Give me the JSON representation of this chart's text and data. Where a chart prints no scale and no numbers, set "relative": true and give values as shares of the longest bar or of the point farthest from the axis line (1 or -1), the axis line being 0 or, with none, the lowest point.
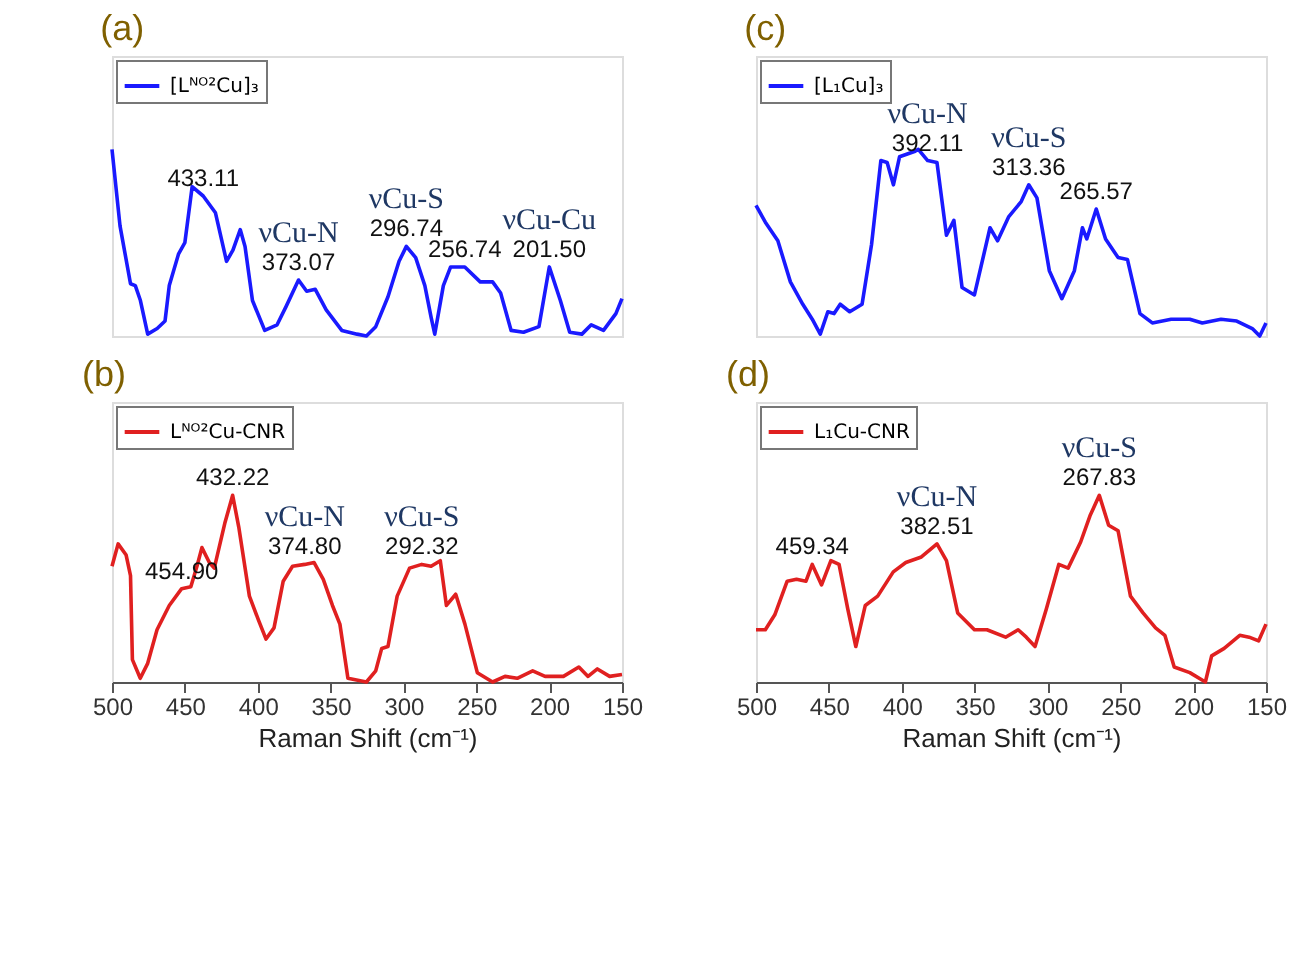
{
  "chart_data": [
    {
      "type": "line",
      "title": "(a)",
      "relative": true,
      "xlim": [
        500,
        150
      ],
      "xticks": [
        500,
        450,
        400,
        350,
        300,
        250,
        200,
        150
      ],
      "tick_labels": false,
      "legend": "top left",
      "grid": false,
      "series": [
        {
          "name": "[Lᴺᴼ²Cu]₃",
          "color": "#1a1aff",
          "x": [
            500,
            494.5,
            487.3,
            484,
            480.5,
            475.5,
            469,
            463.6,
            460.7,
            454.3,
            450,
            445,
            437.4,
            429,
            421.4,
            417,
            412,
            408.7,
            403.6,
            395.2,
            386.7,
            380.4,
            372,
            366.4,
            360.5,
            353,
            342.3,
            331.8,
            325.4,
            319,
            310.6,
            303,
            298,
            291.6,
            285.3,
            281,
            278.5,
            272.6,
            267.6,
            257.9,
            247.3,
            238.8,
            233.3,
            226.1,
            217.6,
            207,
            199.9,
            192.3,
            185.9,
            177.5,
            171.1,
            162.7,
            154.2,
            150
          ],
          "values": [
            1.0,
            0.59,
            0.28,
            0.27,
            0.19,
            0.01,
            0.04,
            0.08,
            0.27,
            0.44,
            0.5,
            0.8,
            0.75,
            0.66,
            0.4,
            0.46,
            0.57,
            0.48,
            0.19,
            0.03,
            0.06,
            0.16,
            0.3,
            0.24,
            0.25,
            0.14,
            0.03,
            0.01,
            0.0,
            0.05,
            0.21,
            0.4,
            0.48,
            0.42,
            0.27,
            0.1,
            0.01,
            0.27,
            0.37,
            0.37,
            0.29,
            0.29,
            0.23,
            0.03,
            0.02,
            0.05,
            0.37,
            0.19,
            0.02,
            0.01,
            0.06,
            0.03,
            0.12,
            0.2
          ]
        }
      ],
      "annotations": [
        {
          "text": "433.11",
          "x": 437.4,
          "y": 0.75
        },
        {
          "text": "373.07",
          "x": 372,
          "y": 0.3
        },
        {
          "text": "νCu-N",
          "x": 372,
          "y": 0.3
        },
        {
          "text": "296.74",
          "x": 298,
          "y": 0.48
        },
        {
          "text": "νCu-S",
          "x": 298,
          "y": 0.48
        },
        {
          "text": "256.74",
          "x": 257.9,
          "y": 0.37
        },
        {
          "text": "201.50",
          "x": 199.9,
          "y": 0.37
        },
        {
          "text": "νCu-Cu",
          "x": 199.9,
          "y": 0.37
        }
      ]
    },
    {
      "type": "line",
      "title": "(c)",
      "relative": true,
      "xlim": [
        500,
        150
      ],
      "xticks": [
        500,
        450,
        400,
        350,
        300,
        250,
        200,
        150
      ],
      "tick_labels": false,
      "legend": "top left",
      "grid": false,
      "series": [
        {
          "name": "[L₁Cu]₃",
          "color": "#1a1aff",
          "x": [
            500,
            493.6,
            485,
            476.4,
            467.9,
            461.4,
            455.9,
            450.7,
            446.4,
            442.2,
            435.7,
            427.2,
            420.7,
            414.3,
            410,
            405.7,
            401.5,
            390.8,
            388.6,
            382.2,
            375.8,
            369.3,
            364.2,
            358.6,
            350.1,
            339.4,
            334.2,
            326.5,
            318,
            312.8,
            307.2,
            298.7,
            290.1,
            281.5,
            276,
            273,
            266.5,
            260.1,
            251.5,
            245.1,
            236.5,
            228,
            215.1,
            202.3,
            193.7,
            180.9,
            170.1,
            159.4,
            154.3,
            150
          ],
          "values": [
            0.7,
            0.61,
            0.51,
            0.29,
            0.17,
            0.09,
            0.01,
            0.13,
            0.12,
            0.17,
            0.13,
            0.17,
            0.49,
            0.94,
            0.93,
            0.81,
            0.96,
            0.99,
            1.0,
            0.94,
            0.93,
            0.54,
            0.62,
            0.26,
            0.22,
            0.58,
            0.51,
            0.64,
            0.72,
            0.81,
            0.74,
            0.35,
            0.2,
            0.35,
            0.58,
            0.52,
            0.68,
            0.52,
            0.42,
            0.41,
            0.12,
            0.07,
            0.09,
            0.09,
            0.07,
            0.09,
            0.08,
            0.04,
            0.0,
            0.07
          ]
        }
      ],
      "annotations": [
        {
          "text": "392.11",
          "x": 382.2,
          "y": 0.94
        },
        {
          "text": "νCu-N",
          "x": 382.2,
          "y": 0.94
        },
        {
          "text": "313.36",
          "x": 312.8,
          "y": 0.81
        },
        {
          "text": "νCu-S",
          "x": 312.8,
          "y": 0.81
        },
        {
          "text": "265.57",
          "x": 266.5,
          "y": 0.68
        }
      ]
    },
    {
      "type": "line",
      "title": "(b)",
      "relative": true,
      "xlabel": "Raman Shift (cm⁻¹)",
      "xlim": [
        500,
        150
      ],
      "xticks": [
        500,
        450,
        400,
        350,
        300,
        250,
        200,
        150
      ],
      "tick_labels": "x",
      "legend": "top left",
      "grid": false,
      "series": [
        {
          "name": "Lᴺᴼ²Cu-CNR",
          "color": "#e02020",
          "x": [
            500,
            495.8,
            490.3,
            487.3,
            486,
            480.6,
            475.5,
            469.1,
            460.7,
            452.2,
            445.9,
            441.7,
            438.3,
            433.2,
            429.8,
            422.6,
            417.2,
            413,
            405.7,
            399.4,
            394.3,
            388.8,
            382.5,
            376.1,
            367.7,
            361.3,
            355,
            348.7,
            343.6,
            338.1,
            325.4,
            319,
            314.9,
            310.6,
            304.3,
            295.8,
            287.4,
            281,
            274.7,
            270.5,
            264.1,
            257.8,
            249.3,
            238.8,
            230.3,
            221.9,
            211.3,
            202.8,
            190.2,
            179.6,
            173.3,
            166.9,
            158.5,
            150
          ],
          "values": [
            0.62,
            0.74,
            0.68,
            0.57,
            0.12,
            0.02,
            0.1,
            0.28,
            0.41,
            0.5,
            0.51,
            0.62,
            0.72,
            0.64,
            0.61,
            0.85,
            1.0,
            0.83,
            0.46,
            0.33,
            0.23,
            0.29,
            0.54,
            0.62,
            0.63,
            0.64,
            0.55,
            0.41,
            0.31,
            0.02,
            0.0,
            0.06,
            0.18,
            0.19,
            0.46,
            0.61,
            0.63,
            0.62,
            0.65,
            0.41,
            0.47,
            0.31,
            0.05,
            0.0,
            0.03,
            0.02,
            0.06,
            0.03,
            0.03,
            0.08,
            0.03,
            0.07,
            0.03,
            0.04
          ]
        }
      ],
      "annotations": [
        {
          "text": "432.22",
          "x": 417.2,
          "y": 1.0
        },
        {
          "text": "454.90",
          "x": 452.2,
          "y": 0.5
        },
        {
          "text": "374.80",
          "x": 367.7,
          "y": 0.63
        },
        {
          "text": "νCu-N",
          "x": 367.7,
          "y": 0.63
        },
        {
          "text": "292.32",
          "x": 287.4,
          "y": 0.63
        },
        {
          "text": "νCu-S",
          "x": 287.4,
          "y": 0.63
        }
      ]
    },
    {
      "type": "line",
      "title": "(d)",
      "relative": true,
      "xlabel": "Raman Shift (cm⁻¹)",
      "xlim": [
        500,
        150
      ],
      "xticks": [
        500,
        450,
        400,
        350,
        300,
        250,
        200,
        150
      ],
      "tick_labels": "x",
      "legend": "top left",
      "grid": false,
      "series": [
        {
          "name": "L₁Cu-CNR",
          "color": "#e02020",
          "x": [
            500,
            493.6,
            487.1,
            478.6,
            472.2,
            465.7,
            461.4,
            455,
            448.6,
            443,
            437,
            431.5,
            425,
            416.5,
            405.8,
            397.2,
            386.5,
            375.8,
            369.3,
            361.6,
            350.1,
            341.5,
            328.7,
            320.1,
            314.5,
            308.5,
            300.8,
            292.2,
            285.8,
            277.2,
            270.8,
            264.4,
            258,
            251.5,
            243,
            234.4,
            225.8,
            219.4,
            213,
            202.3,
            191.6,
            187.3,
            178.7,
            168,
            161.6,
            155.1,
            150
          ],
          "values": [
            0.28,
            0.28,
            0.36,
            0.54,
            0.55,
            0.54,
            0.63,
            0.52,
            0.65,
            0.63,
            0.39,
            0.19,
            0.41,
            0.46,
            0.59,
            0.64,
            0.67,
            0.74,
            0.65,
            0.37,
            0.28,
            0.28,
            0.24,
            0.28,
            0.24,
            0.19,
            0.39,
            0.63,
            0.61,
            0.75,
            0.89,
            1.0,
            0.84,
            0.81,
            0.46,
            0.37,
            0.29,
            0.25,
            0.08,
            0.05,
            0.0,
            0.14,
            0.18,
            0.25,
            0.24,
            0.22,
            0.31
          ]
        }
      ],
      "annotations": [
        {
          "text": "459.34",
          "x": 461.4,
          "y": 0.63
        },
        {
          "text": "382.51",
          "x": 375.8,
          "y": 0.74
        },
        {
          "text": "νCu-N",
          "x": 375.8,
          "y": 0.74
        },
        {
          "text": "267.83",
          "x": 264.4,
          "y": 1.0
        },
        {
          "text": "νCu-S",
          "x": 264.4,
          "y": 1.0
        }
      ]
    }
  ]
}
